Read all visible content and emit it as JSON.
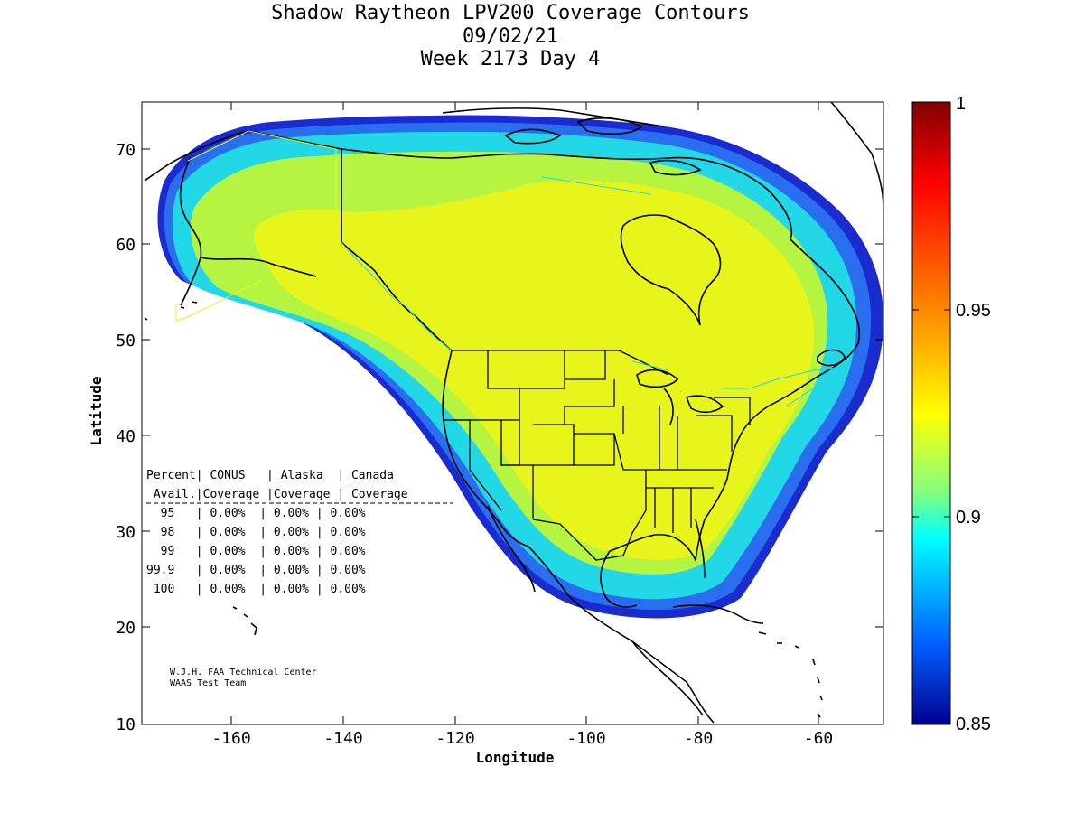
{
  "title": {
    "line1": "Shadow Raytheon LPV200 Coverage Contours",
    "line2": "09/02/21",
    "line3": "Week 2173 Day 4"
  },
  "axes": {
    "xlabel": "Longitude",
    "ylabel": "Latitude",
    "xticks": [
      "-160",
      "-140",
      "-120",
      "-100",
      "-80",
      "-60"
    ],
    "yticks": [
      "10",
      "20",
      "30",
      "40",
      "50",
      "60",
      "70"
    ],
    "xlim": [
      -175,
      -50
    ],
    "ylim": [
      10,
      75
    ]
  },
  "colorbar": {
    "labels": [
      "1",
      "0.95",
      "0.9",
      "0.85"
    ],
    "range": [
      0.85,
      1
    ]
  },
  "colors": {
    "coverage_core": "#e8f51a",
    "coverage_mid": "#b5f542",
    "coverage_cyan": "#22d7e6",
    "coverage_blue": "#2a6ef0",
    "coverage_deep": "#1a2bd0",
    "boundary_yellow": "#e8f51a",
    "boundary_cyan": "#22d7e6"
  },
  "table": {
    "header1": "Percent| CONUS   | Alaska  | Canada",
    "header2": " Avail.|Coverage |Coverage | Coverage",
    "rows": [
      "  95   | 0.00%  | 0.00% | 0.00%",
      "  98   | 0.00%  | 0.00% | 0.00%",
      "  99   | 0.00%  | 0.00% | 0.00%",
      "99.9   | 0.00%  | 0.00% | 0.00%",
      " 100   | 0.00%  | 0.00% | 0.00%"
    ]
  },
  "credit": {
    "line1": "W.J.H. FAA Technical Center",
    "line2": "WAAS Test Team"
  }
}
